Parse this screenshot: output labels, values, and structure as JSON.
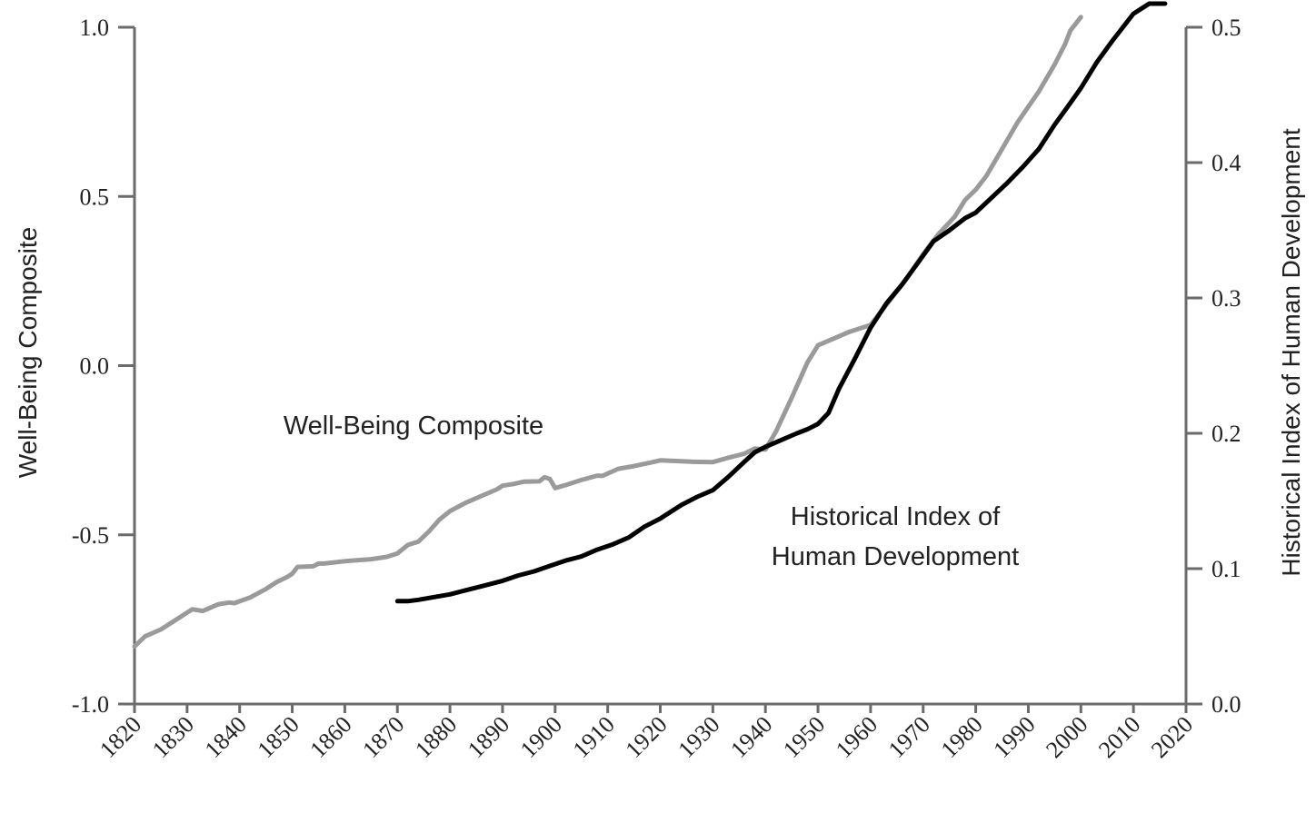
{
  "chart_data": {
    "type": "line",
    "xlim": [
      1820,
      2020
    ],
    "x_ticks": [
      "1820",
      "1830",
      "1840",
      "1850",
      "1860",
      "1870",
      "1880",
      "1890",
      "1900",
      "1910",
      "1920",
      "1930",
      "1940",
      "1950",
      "1960",
      "1970",
      "1980",
      "1990",
      "2000",
      "2010",
      "2020"
    ],
    "left_axis": {
      "label": "Well-Being Composite",
      "ylim": [
        -1.0,
        1.0
      ],
      "ticks": [
        "1.0",
        "0.5",
        "0.0",
        "-0.5",
        "-1.0"
      ]
    },
    "right_axis": {
      "label": "Historical Index of Human Development",
      "ylim": [
        0.0,
        0.5
      ],
      "ticks": [
        "0.5",
        "0.4",
        "0.3",
        "0.2",
        "0.1",
        "0.0"
      ]
    },
    "grid": false,
    "series": [
      {
        "name": "Well-Being Composite",
        "axis": "left",
        "color": "#9a9a9a",
        "annotation_lines": [
          "Well-Being Composite"
        ],
        "points": [
          [
            1820,
            -0.83
          ],
          [
            1822,
            -0.8
          ],
          [
            1825,
            -0.78
          ],
          [
            1828,
            -0.75
          ],
          [
            1831,
            -0.72
          ],
          [
            1833,
            -0.725
          ],
          [
            1836,
            -0.705
          ],
          [
            1838,
            -0.7
          ],
          [
            1839,
            -0.702
          ],
          [
            1842,
            -0.685
          ],
          [
            1845,
            -0.66
          ],
          [
            1847,
            -0.64
          ],
          [
            1849,
            -0.625
          ],
          [
            1850,
            -0.615
          ],
          [
            1851,
            -0.595
          ],
          [
            1854,
            -0.593
          ],
          [
            1855,
            -0.585
          ],
          [
            1856,
            -0.585
          ],
          [
            1860,
            -0.578
          ],
          [
            1865,
            -0.572
          ],
          [
            1868,
            -0.565
          ],
          [
            1870,
            -0.555
          ],
          [
            1872,
            -0.53
          ],
          [
            1874,
            -0.52
          ],
          [
            1876,
            -0.49
          ],
          [
            1878,
            -0.455
          ],
          [
            1880,
            -0.43
          ],
          [
            1883,
            -0.405
          ],
          [
            1886,
            -0.385
          ],
          [
            1889,
            -0.365
          ],
          [
            1890,
            -0.355
          ],
          [
            1892,
            -0.35
          ],
          [
            1894,
            -0.343
          ],
          [
            1897,
            -0.342
          ],
          [
            1898,
            -0.33
          ],
          [
            1899,
            -0.335
          ],
          [
            1900,
            -0.362
          ],
          [
            1902,
            -0.353
          ],
          [
            1905,
            -0.338
          ],
          [
            1908,
            -0.325
          ],
          [
            1909,
            -0.326
          ],
          [
            1912,
            -0.305
          ],
          [
            1915,
            -0.297
          ],
          [
            1918,
            -0.287
          ],
          [
            1920,
            -0.28
          ],
          [
            1923,
            -0.282
          ],
          [
            1926,
            -0.284
          ],
          [
            1930,
            -0.285
          ],
          [
            1933,
            -0.272
          ],
          [
            1936,
            -0.26
          ],
          [
            1938,
            -0.245
          ],
          [
            1940,
            -0.248
          ],
          [
            1942,
            -0.195
          ],
          [
            1945,
            -0.095
          ],
          [
            1948,
            0.01
          ],
          [
            1950,
            0.06
          ],
          [
            1953,
            0.08
          ],
          [
            1956,
            0.1
          ],
          [
            1958,
            0.11
          ],
          [
            1960,
            0.12
          ],
          [
            1963,
            0.18
          ],
          [
            1967,
            0.26
          ],
          [
            1970,
            0.33
          ],
          [
            1973,
            0.39
          ],
          [
            1976,
            0.44
          ],
          [
            1978,
            0.49
          ],
          [
            1980,
            0.52
          ],
          [
            1982,
            0.56
          ],
          [
            1985,
            0.64
          ],
          [
            1988,
            0.72
          ],
          [
            1992,
            0.81
          ],
          [
            1995,
            0.89
          ],
          [
            1997,
            0.95
          ],
          [
            1998,
            0.99
          ],
          [
            2000,
            1.03
          ]
        ]
      },
      {
        "name": "Historical Index of Human Development",
        "axis": "right",
        "color": "#000000",
        "annotation_lines": [
          "Historical Index of",
          "Human Development"
        ],
        "points": [
          [
            1870,
            0.076
          ],
          [
            1872,
            0.076
          ],
          [
            1874,
            0.077
          ],
          [
            1877,
            0.079
          ],
          [
            1880,
            0.081
          ],
          [
            1883,
            0.084
          ],
          [
            1886,
            0.087
          ],
          [
            1890,
            0.091
          ],
          [
            1893,
            0.095
          ],
          [
            1896,
            0.098
          ],
          [
            1899,
            0.102
          ],
          [
            1902,
            0.106
          ],
          [
            1905,
            0.109
          ],
          [
            1908,
            0.114
          ],
          [
            1911,
            0.118
          ],
          [
            1914,
            0.123
          ],
          [
            1917,
            0.131
          ],
          [
            1920,
            0.137
          ],
          [
            1922,
            0.142
          ],
          [
            1924,
            0.147
          ],
          [
            1927,
            0.153
          ],
          [
            1930,
            0.158
          ],
          [
            1933,
            0.168
          ],
          [
            1936,
            0.179
          ],
          [
            1938,
            0.186
          ],
          [
            1940,
            0.19
          ],
          [
            1943,
            0.195
          ],
          [
            1946,
            0.2
          ],
          [
            1948,
            0.203
          ],
          [
            1950,
            0.207
          ],
          [
            1952,
            0.215
          ],
          [
            1954,
            0.233
          ],
          [
            1957,
            0.255
          ],
          [
            1960,
            0.278
          ],
          [
            1963,
            0.296
          ],
          [
            1966,
            0.31
          ],
          [
            1969,
            0.326
          ],
          [
            1972,
            0.342
          ],
          [
            1975,
            0.35
          ],
          [
            1978,
            0.359
          ],
          [
            1980,
            0.363
          ],
          [
            1983,
            0.374
          ],
          [
            1986,
            0.385
          ],
          [
            1989,
            0.397
          ],
          [
            1992,
            0.41
          ],
          [
            1995,
            0.428
          ],
          [
            1998,
            0.444
          ],
          [
            2000,
            0.455
          ],
          [
            2003,
            0.474
          ],
          [
            2006,
            0.49
          ],
          [
            2010,
            0.51
          ],
          [
            2013,
            0.527
          ],
          [
            2016,
            0.545
          ]
        ]
      }
    ]
  }
}
